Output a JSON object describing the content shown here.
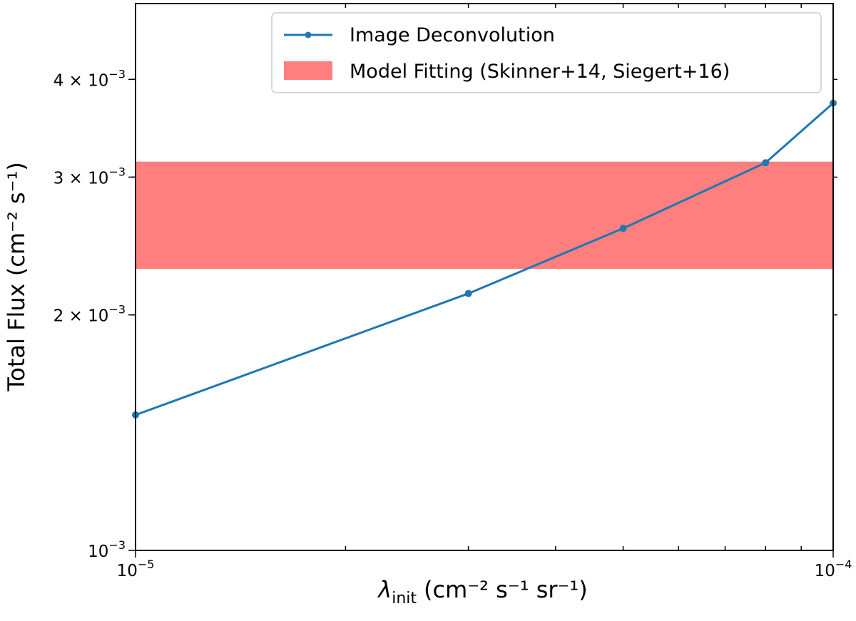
{
  "chart_data": {
    "type": "line",
    "xscale": "log",
    "yscale": "log",
    "xlim": [
      1e-05,
      0.0001
    ],
    "ylim": [
      0.001,
      0.005
    ],
    "xlabel": {
      "symbol": "λ",
      "subscript": "init",
      "units": "(cm⁻² s⁻¹ sr⁻¹)"
    },
    "ylabel": "Total Flux (cm⁻² s⁻¹)",
    "xticks": [
      {
        "value": 1e-05,
        "base": "10",
        "exp": "−5"
      },
      {
        "value": 0.0001,
        "base": "10",
        "exp": "−4"
      }
    ],
    "yticks": [
      {
        "value": 0.001,
        "mant": "",
        "base": "10",
        "exp": "−3"
      },
      {
        "value": 0.002,
        "mant": "2 × ",
        "base": "10",
        "exp": "−3"
      },
      {
        "value": 0.003,
        "mant": "3 × ",
        "base": "10",
        "exp": "−3"
      },
      {
        "value": 0.004,
        "mant": "4 × ",
        "base": "10",
        "exp": "−3"
      }
    ],
    "series": [
      {
        "name": "Image Deconvolution",
        "color": "#1f77b4",
        "x": [
          1e-05,
          3e-05,
          5e-05,
          8e-05,
          0.0001
        ],
        "y": [
          0.00149,
          0.00213,
          0.00258,
          0.00313,
          0.00373
        ]
      }
    ],
    "band": {
      "name": "Model Fitting (Skinner+14, Siegert+16)",
      "color": "#ff7f7f",
      "ymin": 0.00229,
      "ymax": 0.00314
    },
    "legend": {
      "position": "top-right"
    }
  }
}
